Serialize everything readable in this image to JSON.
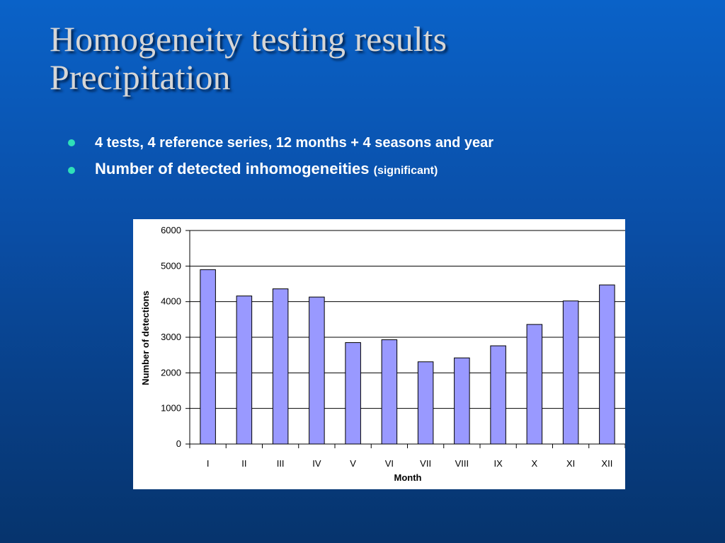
{
  "slide": {
    "title_lines": [
      "Homogeneity testing results",
      "Precipitation"
    ],
    "bullets": [
      {
        "text": "4 tests, 4 reference series, 12 months + 4 seasons and year"
      },
      {
        "text": "Number of detected inhomogeneities",
        "suffix": "(significant)"
      }
    ]
  },
  "colors": {
    "bar_fill": "#9999ff",
    "bullet_dot": "#2fe0b8",
    "title_text": "#d6d6d6"
  },
  "chart_data": {
    "type": "bar",
    "title": "",
    "xlabel": "Month",
    "ylabel": "Number of detections",
    "categories": [
      "I",
      "II",
      "III",
      "IV",
      "V",
      "VI",
      "VII",
      "VIII",
      "IX",
      "X",
      "XI",
      "XII"
    ],
    "values": [
      4900,
      4160,
      4360,
      4130,
      2850,
      2930,
      2310,
      2420,
      2760,
      3360,
      4020,
      4470
    ],
    "ylim": [
      0,
      6000
    ],
    "yticks": [
      "0",
      "1000",
      "2000",
      "3000",
      "4000",
      "5000",
      "6000"
    ],
    "grid": true,
    "legend": "none"
  }
}
